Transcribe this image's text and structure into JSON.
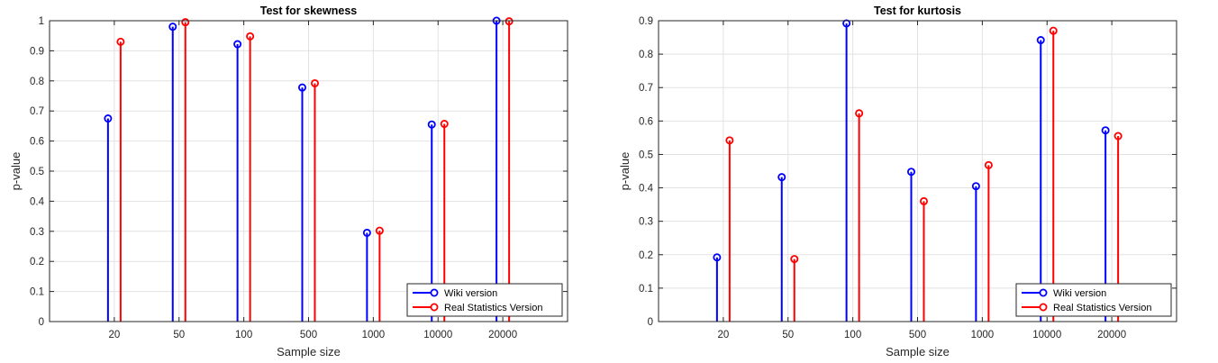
{
  "chart_data": [
    {
      "type": "stem",
      "title": "Test for skewness",
      "xlabel": "Sample size",
      "ylabel": "p-value",
      "categories": [
        "20",
        "50",
        "100",
        "500",
        "1000",
        "10000",
        "20000"
      ],
      "ylim": [
        0,
        1
      ],
      "yticks": [
        "0",
        "0.1",
        "0.2",
        "0.3",
        "0.4",
        "0.5",
        "0.6",
        "0.7",
        "0.8",
        "0.9",
        "1"
      ],
      "grid": true,
      "legend_position": "bottom-right",
      "series": [
        {
          "name": "Wiki version",
          "color": "#0000ff",
          "values": [
            0.675,
            0.98,
            0.922,
            0.778,
            0.295,
            0.655,
            1.0
          ]
        },
        {
          "name": "Real Statistics Version",
          "color": "#ff0000",
          "values": [
            0.93,
            0.995,
            0.948,
            0.792,
            0.302,
            0.657,
            0.998
          ]
        }
      ]
    },
    {
      "type": "stem",
      "title": "Test for kurtosis",
      "xlabel": "Sample size",
      "ylabel": "p-value",
      "categories": [
        "20",
        "50",
        "100",
        "500",
        "1000",
        "10000",
        "20000"
      ],
      "ylim": [
        0,
        0.9
      ],
      "yticks": [
        "0",
        "0.1",
        "0.2",
        "0.3",
        "0.4",
        "0.5",
        "0.6",
        "0.7",
        "0.8",
        "0.9"
      ],
      "grid": true,
      "legend_position": "bottom-right",
      "series": [
        {
          "name": "Wiki version",
          "color": "#0000ff",
          "values": [
            0.192,
            0.432,
            0.892,
            0.448,
            0.405,
            0.842,
            0.572
          ]
        },
        {
          "name": "Real Statistics Version",
          "color": "#ff0000",
          "values": [
            0.542,
            0.187,
            0.623,
            0.36,
            0.468,
            0.87,
            0.555
          ]
        }
      ]
    }
  ]
}
